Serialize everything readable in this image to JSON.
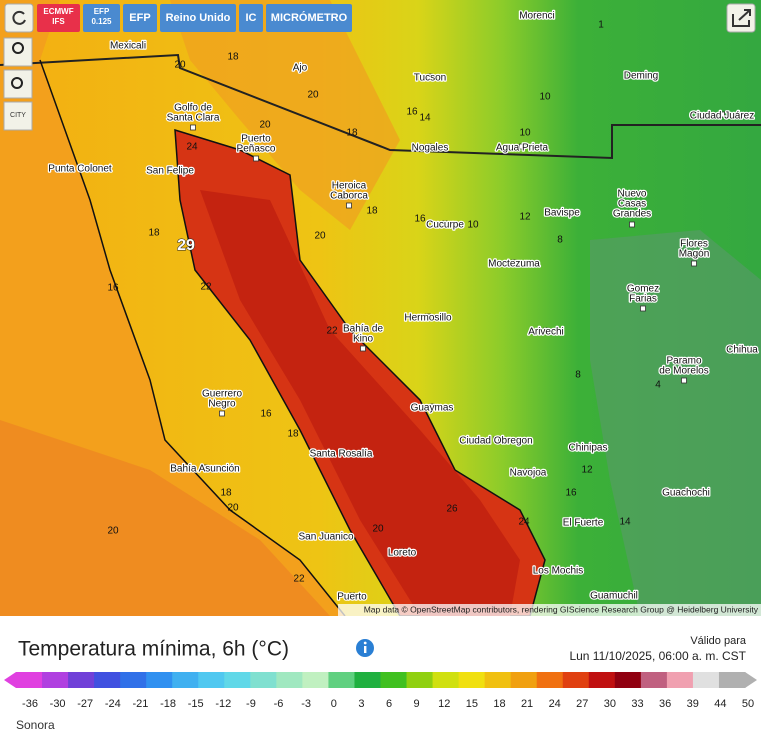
{
  "toolbar": {
    "buttons": [
      [
        "ECMWF",
        "IFS"
      ],
      [
        "EFP",
        "0.125"
      ],
      [
        "EFP"
      ],
      [
        "Reino Unido"
      ],
      [
        "IC"
      ],
      [
        "MICRÓMETRO"
      ]
    ],
    "city_button": "CITY"
  },
  "map": {
    "cities": [
      [
        "Mexicali"
      ],
      [
        "Morenci"
      ],
      [
        "Tucson"
      ],
      [
        "Deming"
      ],
      [
        "Ciudad Juárez"
      ],
      [
        "Golfo de",
        "Santa Clara"
      ],
      [
        "Puerto",
        "Peñasco"
      ],
      [
        "Nogales"
      ],
      [
        "Agua Prieta"
      ],
      [
        "Punta Colonet"
      ],
      [
        "San Felipe"
      ],
      [
        "Heroica",
        "Caborca"
      ],
      [
        "Bavispe"
      ],
      [
        "Nuevo",
        "Casas",
        "Grandes"
      ],
      [
        "Cucurpe"
      ],
      [
        "Flores",
        "Magón"
      ],
      [
        "Moctezuma"
      ],
      [
        "Gomez",
        "Farias"
      ],
      [
        "Hermosillo"
      ],
      [
        "Bahía de",
        "Kino"
      ],
      [
        "Arivechi"
      ],
      [
        "Chihua"
      ],
      [
        "Paramo",
        "de Morelos"
      ],
      [
        "Guerrero",
        "Negro"
      ],
      [
        "Guaymas"
      ],
      [
        "Ciudad Obregon"
      ],
      [
        "Santa Rosalía"
      ],
      [
        "Chinipas"
      ],
      [
        "Navojoa"
      ],
      [
        "Bahía Asunción"
      ],
      [
        "Guachochi"
      ],
      [
        "El Fuerte"
      ],
      [
        "San Juanico"
      ],
      [
        "Loreto"
      ],
      [
        "Los Mochis"
      ],
      [
        "Puerto"
      ],
      [
        "Guamuchil"
      ],
      [
        "Ajo"
      ]
    ],
    "values": [
      18,
      20,
      20,
      14,
      16,
      10,
      10,
      20,
      18,
      24,
      18,
      20,
      16,
      10,
      12,
      8,
      18,
      29,
      22,
      16,
      22,
      16,
      18,
      20,
      20,
      26,
      24,
      20,
      22,
      18,
      16,
      12,
      14,
      8,
      4,
      1
    ],
    "attribution": "Map data © OpenStreetMap contributors, rendering GIScience Research Group @ Heidelberg University"
  },
  "footer": {
    "title": "Temperatura mínima, 6h (°C)",
    "valid_label": "Válido para",
    "valid_date": "Lun 11/10/2025, 06:00 a. m. CST",
    "region": "Sonora"
  },
  "legend": {
    "ticks": [
      -36,
      -30,
      -27,
      -24,
      -21,
      -18,
      -15,
      -12,
      -9,
      -6,
      -3,
      0,
      3,
      6,
      9,
      12,
      15,
      18,
      21,
      24,
      27,
      30,
      33,
      36,
      39,
      44,
      50
    ]
  }
}
